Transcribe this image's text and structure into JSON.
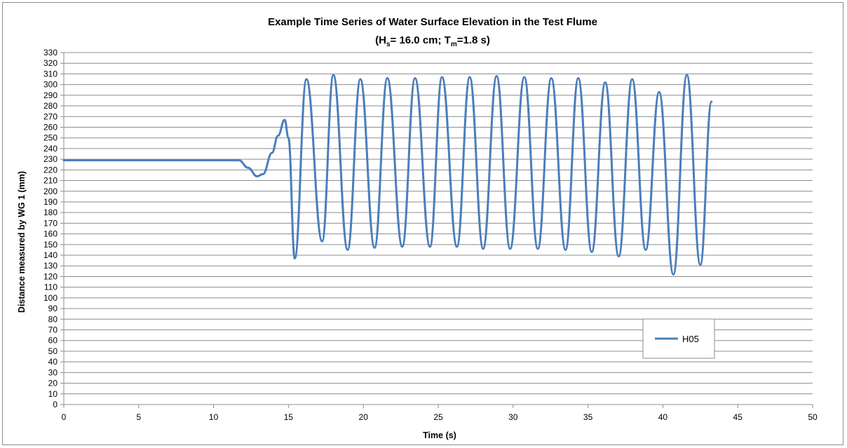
{
  "chart_data": {
    "type": "line",
    "title": "Example Time Series of Water Surface Elevation in the Test Flume",
    "subtitle": {
      "open": "(H",
      "hs_sub": "s",
      "middle": "= 16.0 cm; T",
      "tm_sub": "m",
      "close": "=1.8 s)"
    },
    "xlabel": "Time (s)",
    "ylabel": "Distance  measured by WG 1 (mm)",
    "xlim": [
      0,
      50
    ],
    "ylim": [
      0,
      330
    ],
    "x_ticks": [
      "0",
      "5",
      "10",
      "15",
      "20",
      "25",
      "30",
      "35",
      "40",
      "45",
      "50"
    ],
    "y_ticks": [
      "0",
      "10",
      "20",
      "30",
      "40",
      "50",
      "60",
      "70",
      "80",
      "90",
      "100",
      "110",
      "120",
      "130",
      "140",
      "150",
      "160",
      "170",
      "180",
      "190",
      "200",
      "210",
      "220",
      "230",
      "240",
      "250",
      "260",
      "270",
      "280",
      "290",
      "300",
      "310",
      "320",
      "330"
    ],
    "grid": "horizontal",
    "legend_position": "lower-right",
    "series": [
      {
        "name": "H05",
        "color": "#4a7ebb",
        "baseline": {
          "x_start": 0,
          "x_end": 11.7,
          "y": 229
        },
        "points": [
          [
            11.7,
            229
          ],
          [
            12.3,
            222
          ],
          [
            12.9,
            214
          ],
          [
            13.3,
            216
          ],
          [
            13.9,
            236
          ],
          [
            14.3,
            252
          ],
          [
            14.75,
            267
          ],
          [
            15.0,
            250
          ],
          [
            15.42,
            137
          ],
          [
            16.2,
            305
          ],
          [
            17.25,
            153
          ],
          [
            18.0,
            309
          ],
          [
            18.95,
            145
          ],
          [
            19.8,
            305
          ],
          [
            20.75,
            147
          ],
          [
            21.6,
            306
          ],
          [
            22.6,
            148
          ],
          [
            23.45,
            306
          ],
          [
            24.45,
            148
          ],
          [
            25.25,
            307
          ],
          [
            26.25,
            148
          ],
          [
            27.1,
            307
          ],
          [
            28.0,
            146
          ],
          [
            28.9,
            308
          ],
          [
            29.8,
            146
          ],
          [
            30.75,
            307
          ],
          [
            31.65,
            146
          ],
          [
            32.55,
            306
          ],
          [
            33.5,
            145
          ],
          [
            34.35,
            306
          ],
          [
            35.25,
            143
          ],
          [
            36.15,
            302
          ],
          [
            37.05,
            139
          ],
          [
            37.95,
            305
          ],
          [
            38.85,
            145
          ],
          [
            39.75,
            293
          ],
          [
            40.7,
            122
          ],
          [
            41.6,
            309
          ],
          [
            42.5,
            131
          ],
          [
            43.25,
            284
          ]
        ]
      }
    ]
  }
}
